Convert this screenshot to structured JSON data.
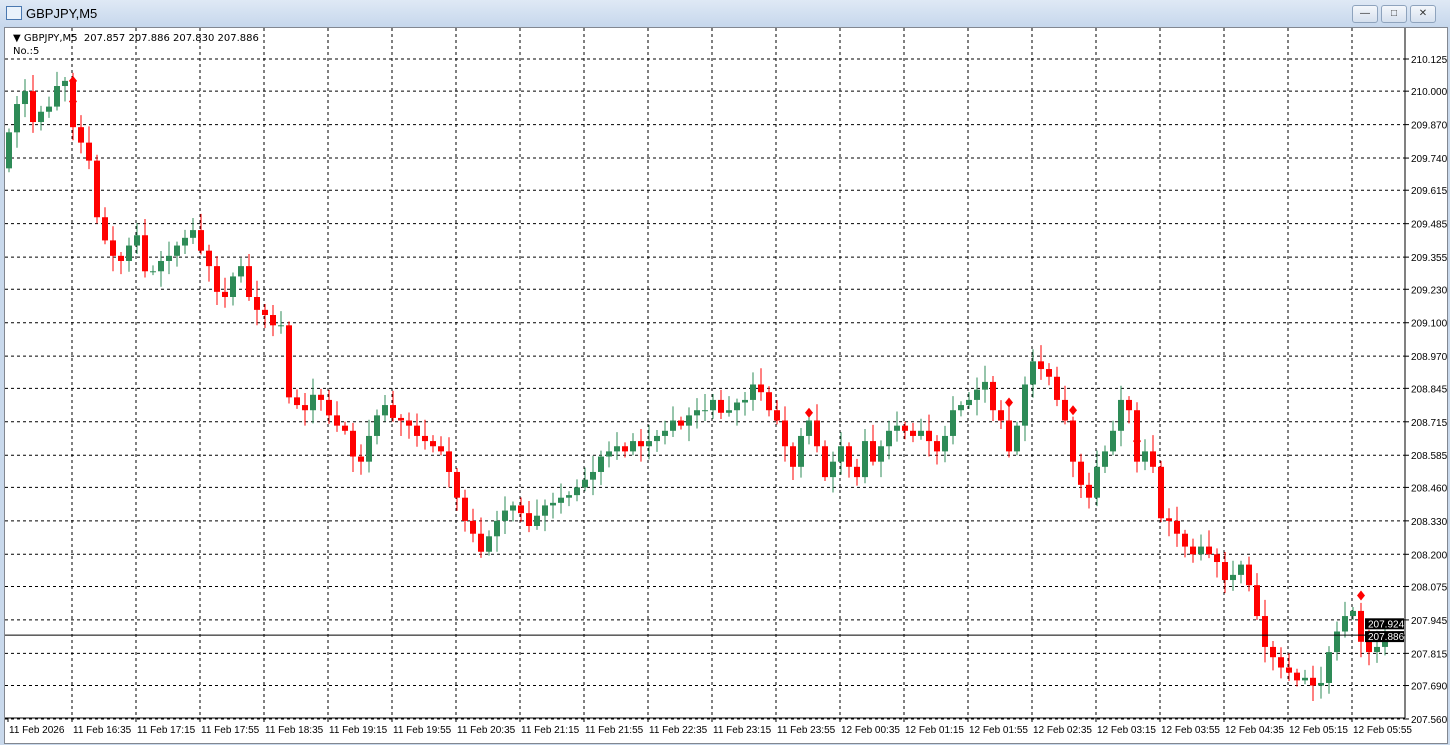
{
  "window": {
    "title": "GBPJPY,M5",
    "buttons": [
      "minimize",
      "maximize",
      "close"
    ]
  },
  "header": {
    "symbol": "GBPJPY,M5",
    "ohlc": "207.857 207.886 207.830 207.886",
    "indicator": "No.:5"
  },
  "colors": {
    "bull": "#2e8b57",
    "bear": "#ff0000",
    "grid": "#000000",
    "background": "#ffffff",
    "marker": "#ff0000"
  },
  "chart_data": {
    "type": "candlestick",
    "symbol": "GBPJPY",
    "timeframe": "M5",
    "ylim": [
      207.56,
      210.14
    ],
    "price_ticks": [
      "210.125",
      "210.000",
      "209.870",
      "209.740",
      "209.615",
      "209.485",
      "209.355",
      "209.230",
      "209.100",
      "208.970",
      "208.845",
      "208.715",
      "208.585",
      "208.460",
      "208.330",
      "208.200",
      "208.075",
      "207.945",
      "207.815",
      "207.690",
      "207.560"
    ],
    "time_ticks": [
      "11 Feb 2026",
      "11 Feb 16:35",
      "11 Feb 17:15",
      "11 Feb 17:55",
      "11 Feb 18:35",
      "11 Feb 19:15",
      "11 Feb 19:55",
      "11 Feb 20:35",
      "11 Feb 21:15",
      "11 Feb 21:55",
      "11 Feb 22:35",
      "11 Feb 23:15",
      "11 Feb 23:55",
      "12 Feb 00:35",
      "12 Feb 01:15",
      "12 Feb 01:55",
      "12 Feb 02:35",
      "12 Feb 03:15",
      "12 Feb 03:55",
      "12 Feb 04:35",
      "12 Feb 05:15",
      "12 Feb 05:55"
    ],
    "bid": "207.886",
    "ask": "207.924",
    "first_open": 209.7,
    "closes": [
      209.84,
      209.95,
      210.0,
      209.88,
      209.92,
      209.94,
      210.02,
      210.04,
      209.86,
      209.8,
      209.73,
      209.51,
      209.42,
      209.36,
      209.34,
      209.4,
      209.44,
      209.3,
      209.3,
      209.34,
      209.36,
      209.4,
      209.43,
      209.46,
      209.38,
      209.32,
      209.22,
      209.2,
      209.28,
      209.32,
      209.2,
      209.15,
      209.13,
      209.09,
      209.09,
      208.81,
      208.78,
      208.76,
      208.82,
      208.8,
      208.74,
      208.7,
      208.68,
      208.58,
      208.56,
      208.66,
      208.74,
      208.78,
      208.73,
      208.72,
      208.7,
      208.66,
      208.64,
      208.62,
      208.6,
      208.52,
      208.42,
      208.33,
      208.28,
      208.21,
      208.27,
      208.33,
      208.37,
      208.39,
      208.36,
      208.31,
      208.35,
      208.39,
      208.4,
      208.42,
      208.43,
      208.46,
      208.49,
      208.52,
      208.58,
      208.6,
      208.62,
      208.6,
      208.64,
      208.62,
      208.64,
      208.66,
      208.68,
      208.72,
      208.7,
      208.74,
      208.76,
      208.76,
      208.8,
      208.75,
      208.76,
      208.79,
      208.8,
      208.86,
      208.83,
      208.76,
      208.72,
      208.62,
      208.54,
      208.66,
      208.72,
      208.62,
      208.5,
      208.56,
      208.62,
      208.54,
      208.5,
      208.64,
      208.56,
      208.62,
      208.68,
      208.7,
      208.68,
      208.66,
      208.68,
      208.64,
      208.6,
      208.66,
      208.76,
      208.78,
      208.8,
      208.84,
      208.87,
      208.76,
      208.72,
      208.6,
      208.7,
      208.86,
      208.95,
      208.92,
      208.89,
      208.8,
      208.72,
      208.56,
      208.47,
      208.42,
      208.54,
      208.6,
      208.68,
      208.8,
      208.76,
      208.56,
      208.6,
      208.54,
      208.34,
      208.33,
      208.28,
      208.23,
      208.2,
      208.23,
      208.2,
      208.17,
      208.1,
      208.12,
      208.16,
      208.08,
      207.96,
      207.84,
      207.8,
      207.76,
      207.74,
      207.71,
      207.72,
      207.69,
      207.7,
      207.82,
      207.9,
      207.96,
      207.98,
      207.86,
      207.82,
      207.84,
      207.886
    ],
    "markers": [
      {
        "bar": 8,
        "price": 210.04
      },
      {
        "bar": 8,
        "price": 209.96
      },
      {
        "bar": 100,
        "price": 208.75
      },
      {
        "bar": 125,
        "price": 208.79
      },
      {
        "bar": 133,
        "price": 208.76
      },
      {
        "bar": 141,
        "price": 208.64
      },
      {
        "bar": 169,
        "price": 208.04
      }
    ]
  }
}
